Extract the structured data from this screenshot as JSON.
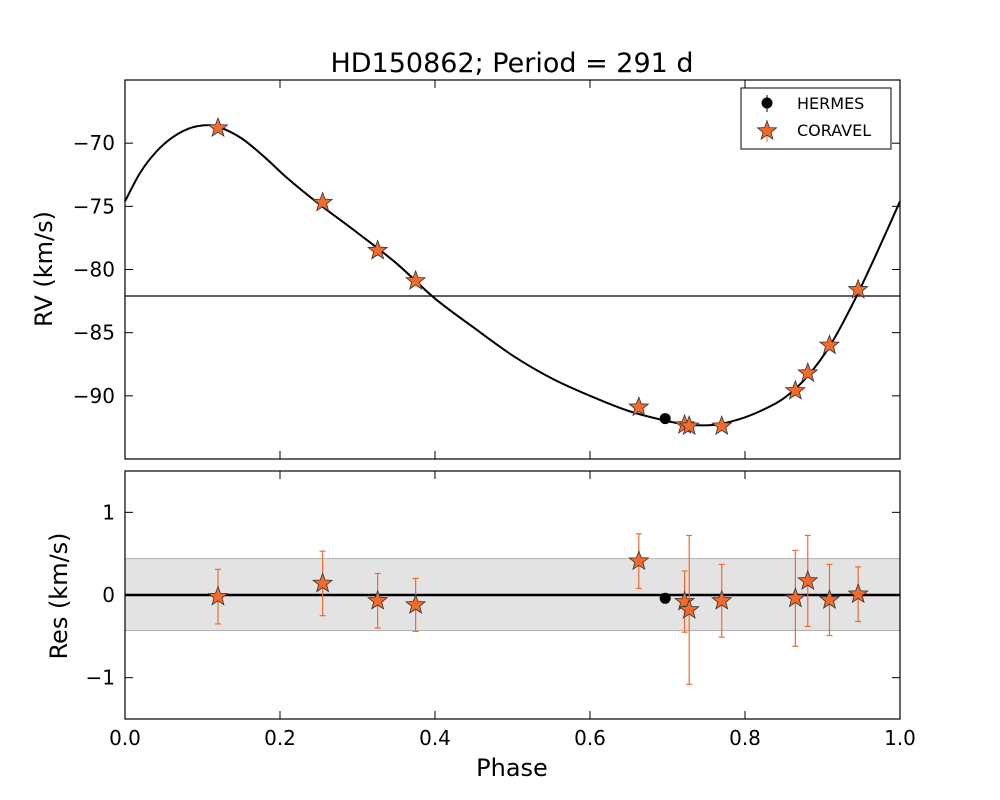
{
  "chart_data": {
    "type": "scatter",
    "title": "HD150862; Period = 291 d",
    "xlabel": "Phase",
    "x_ticks": [
      0.0,
      0.2,
      0.4,
      0.6,
      0.8,
      1.0
    ],
    "x_tick_labels": [
      "0.0",
      "0.2",
      "0.4",
      "0.6",
      "0.8",
      "1.0"
    ],
    "xlim": [
      0.0,
      1.0
    ],
    "colors": {
      "coravel": "#f26b2b",
      "hermes": "#000000",
      "band": "#e3e3e3"
    },
    "top_panel": {
      "ylabel": "RV (km/s)",
      "ylim": [
        -95,
        -65
      ],
      "y_ticks": [
        -70,
        -75,
        -80,
        -85,
        -90
      ],
      "y_tick_labels": [
        "−70",
        "−75",
        "−80",
        "−85",
        "−90"
      ],
      "systemic_velocity": -82.1,
      "fit_curve": [
        {
          "x": 0.0,
          "y": -74.6
        },
        {
          "x": 0.02,
          "y": -72.3
        },
        {
          "x": 0.04,
          "y": -70.7
        },
        {
          "x": 0.06,
          "y": -69.6
        },
        {
          "x": 0.08,
          "y": -68.9
        },
        {
          "x": 0.1,
          "y": -68.6
        },
        {
          "x": 0.12,
          "y": -68.7
        },
        {
          "x": 0.15,
          "y": -69.6
        },
        {
          "x": 0.18,
          "y": -71.1
        },
        {
          "x": 0.21,
          "y": -72.8
        },
        {
          "x": 0.25,
          "y": -74.8
        },
        {
          "x": 0.3,
          "y": -77.1
        },
        {
          "x": 0.35,
          "y": -79.5
        },
        {
          "x": 0.4,
          "y": -82.3
        },
        {
          "x": 0.45,
          "y": -84.6
        },
        {
          "x": 0.5,
          "y": -86.8
        },
        {
          "x": 0.55,
          "y": -88.6
        },
        {
          "x": 0.6,
          "y": -90.0
        },
        {
          "x": 0.65,
          "y": -91.2
        },
        {
          "x": 0.7,
          "y": -92.0
        },
        {
          "x": 0.73,
          "y": -92.3
        },
        {
          "x": 0.76,
          "y": -92.3
        },
        {
          "x": 0.79,
          "y": -91.9
        },
        {
          "x": 0.82,
          "y": -91.2
        },
        {
          "x": 0.85,
          "y": -90.2
        },
        {
          "x": 0.88,
          "y": -88.5
        },
        {
          "x": 0.91,
          "y": -86.0
        },
        {
          "x": 0.94,
          "y": -82.6
        },
        {
          "x": 0.97,
          "y": -78.7
        },
        {
          "x": 1.0,
          "y": -74.6
        }
      ],
      "series": [
        {
          "name": "HERMES",
          "marker": "circle",
          "points": [
            {
              "x": 0.697,
              "y": -91.8
            }
          ]
        },
        {
          "name": "CORAVEL",
          "marker": "star",
          "points": [
            {
              "x": 0.12,
              "y": -68.8
            },
            {
              "x": 0.255,
              "y": -74.7
            },
            {
              "x": 0.326,
              "y": -78.5
            },
            {
              "x": 0.375,
              "y": -80.9
            },
            {
              "x": 0.663,
              "y": -90.9
            },
            {
              "x": 0.722,
              "y": -92.3
            },
            {
              "x": 0.728,
              "y": -92.4
            },
            {
              "x": 0.77,
              "y": -92.4
            },
            {
              "x": 0.865,
              "y": -89.6
            },
            {
              "x": 0.881,
              "y": -88.2
            },
            {
              "x": 0.909,
              "y": -86.0
            },
            {
              "x": 0.946,
              "y": -81.6
            }
          ]
        }
      ],
      "legend": {
        "position": "top-right",
        "entries": [
          "HERMES",
          "CORAVEL"
        ]
      }
    },
    "bottom_panel": {
      "ylabel": "Res (km/s)",
      "ylim": [
        -1.5,
        1.5
      ],
      "y_ticks": [
        1,
        0,
        -1
      ],
      "y_tick_labels": [
        "1",
        "0",
        "−1"
      ],
      "band": [
        -0.43,
        0.44
      ],
      "series": [
        {
          "name": "HERMES",
          "marker": "circle",
          "points": [
            {
              "x": 0.697,
              "y": -0.04,
              "err": 0.0
            }
          ]
        },
        {
          "name": "CORAVEL",
          "marker": "star",
          "points": [
            {
              "x": 0.12,
              "y": -0.02,
              "err": 0.33
            },
            {
              "x": 0.255,
              "y": 0.14,
              "err": 0.39
            },
            {
              "x": 0.326,
              "y": -0.07,
              "err": 0.33
            },
            {
              "x": 0.375,
              "y": -0.12,
              "err": 0.32
            },
            {
              "x": 0.663,
              "y": 0.41,
              "err": 0.33
            },
            {
              "x": 0.722,
              "y": -0.08,
              "err": 0.37
            },
            {
              "x": 0.728,
              "y": -0.18,
              "err": 0.9
            },
            {
              "x": 0.77,
              "y": -0.07,
              "err": 0.44
            },
            {
              "x": 0.865,
              "y": -0.04,
              "err": 0.58
            },
            {
              "x": 0.881,
              "y": 0.17,
              "err": 0.55
            },
            {
              "x": 0.909,
              "y": -0.06,
              "err": 0.43
            },
            {
              "x": 0.946,
              "y": 0.01,
              "err": 0.33
            }
          ]
        }
      ]
    }
  }
}
